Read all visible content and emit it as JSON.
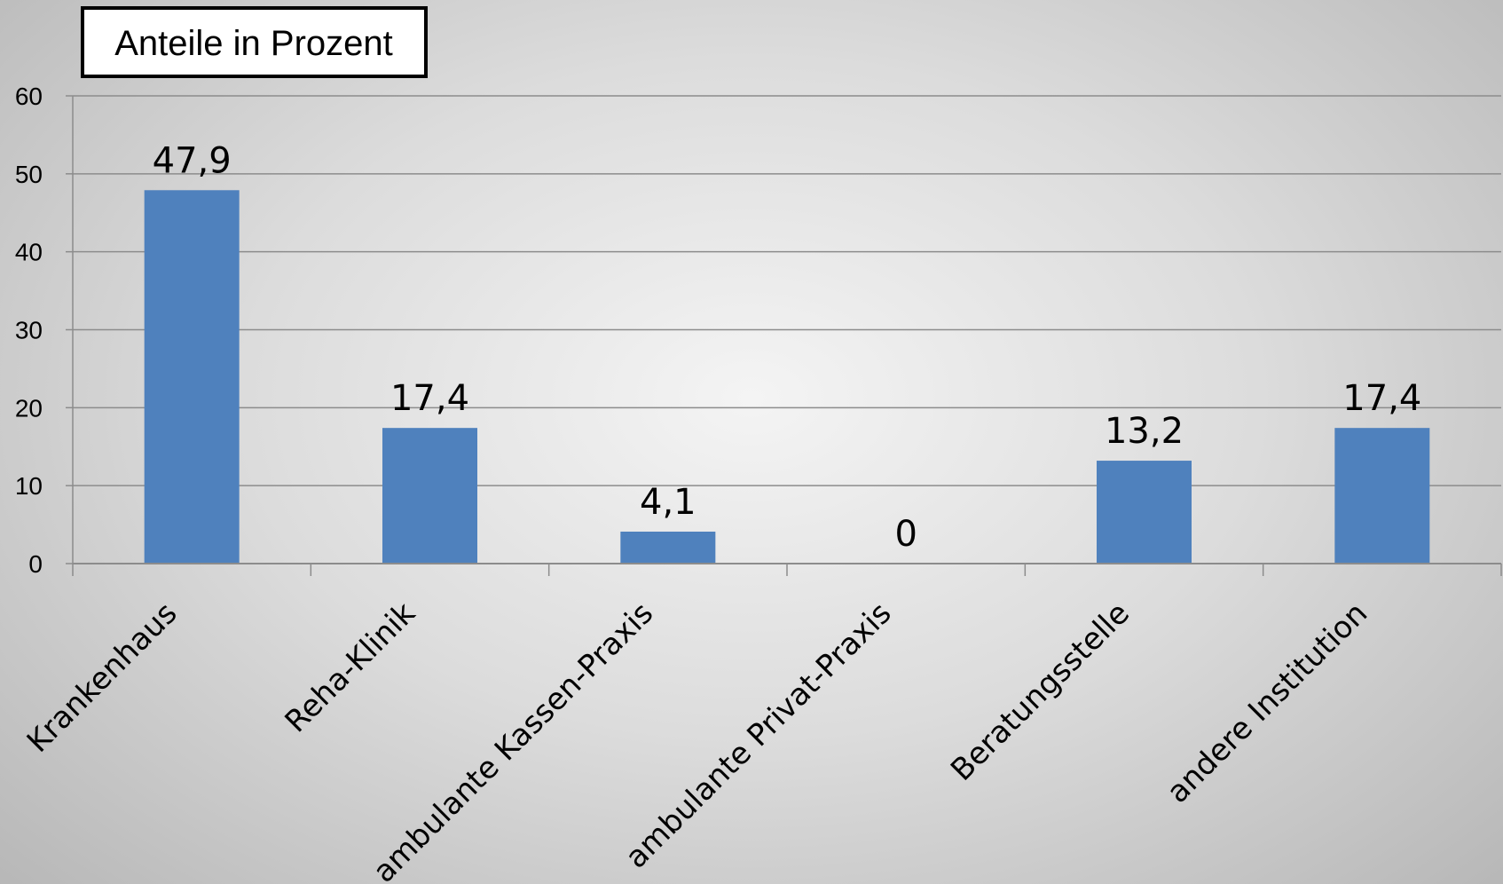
{
  "chart_data": {
    "type": "bar",
    "title": "Anteile in Prozent",
    "categories": [
      "Krankenhaus",
      "Reha-Klinik",
      "ambulante Kassen-Praxis",
      "ambulante Privat-Praxis",
      "Beratungsstelle",
      "andere Institution"
    ],
    "values": [
      47.9,
      17.4,
      4.1,
      0,
      13.2,
      17.4
    ],
    "data_labels": [
      "47,9",
      "17,4",
      "4,1",
      "0",
      "13,2",
      "17,4"
    ],
    "y_ticks": [
      "0",
      "10",
      "20",
      "30",
      "40",
      "50",
      "60"
    ],
    "ylim": [
      0,
      60
    ],
    "grid": true,
    "legend": "none",
    "colors": {
      "bar": "#4f81bd",
      "grid": "#8c8c8c",
      "axis": "#8c8c8c"
    }
  }
}
